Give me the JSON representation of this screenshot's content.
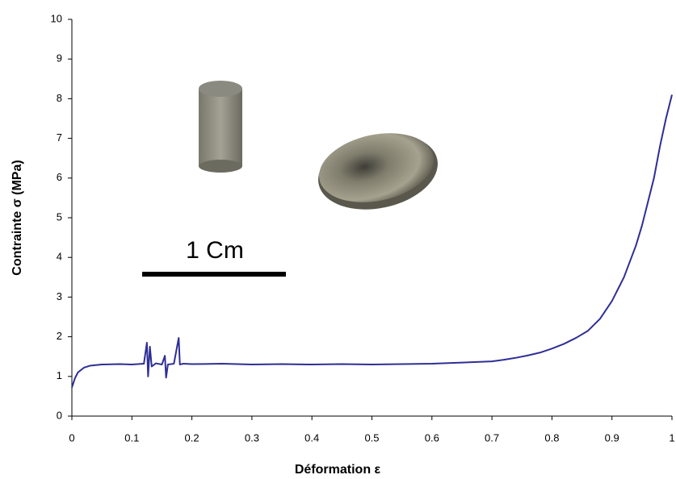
{
  "chart_data": {
    "type": "line",
    "x_label": "Déformation ε",
    "y_label": "Contrainte σ (MPa)",
    "scale_bar_label": "1 Cm",
    "x": [
      0,
      0.005,
      0.01,
      0.02,
      0.03,
      0.05,
      0.08,
      0.1,
      0.12,
      0.125,
      0.127,
      0.13,
      0.133,
      0.14,
      0.15,
      0.155,
      0.157,
      0.16,
      0.17,
      0.178,
      0.18,
      0.185,
      0.2,
      0.25,
      0.3,
      0.35,
      0.4,
      0.45,
      0.5,
      0.55,
      0.6,
      0.65,
      0.7,
      0.72,
      0.74,
      0.76,
      0.78,
      0.8,
      0.82,
      0.84,
      0.86,
      0.88,
      0.9,
      0.92,
      0.94,
      0.95,
      0.96,
      0.97,
      0.98,
      0.99,
      1.0
    ],
    "series": [
      {
        "color": "#2e2e96",
        "values": [
          0.72,
          0.95,
          1.1,
          1.22,
          1.27,
          1.3,
          1.31,
          1.3,
          1.32,
          1.85,
          1.0,
          1.75,
          1.25,
          1.33,
          1.3,
          1.52,
          0.97,
          1.3,
          1.32,
          1.97,
          1.3,
          1.32,
          1.31,
          1.32,
          1.3,
          1.31,
          1.3,
          1.31,
          1.3,
          1.31,
          1.32,
          1.35,
          1.38,
          1.42,
          1.47,
          1.53,
          1.6,
          1.7,
          1.82,
          1.97,
          2.15,
          2.45,
          2.9,
          3.5,
          4.3,
          4.8,
          5.4,
          6.0,
          6.8,
          7.5,
          8.1
        ]
      }
    ],
    "xlim": [
      0,
      1
    ],
    "xticks": [
      0,
      0.1,
      0.2,
      0.3,
      0.4,
      0.5,
      0.6,
      0.7,
      0.8,
      0.9,
      1
    ],
    "ylim": [
      0,
      10
    ],
    "yticks": [
      0,
      1,
      2,
      3,
      4,
      5,
      6,
      7,
      8,
      9,
      10
    ],
    "grid": false
  }
}
